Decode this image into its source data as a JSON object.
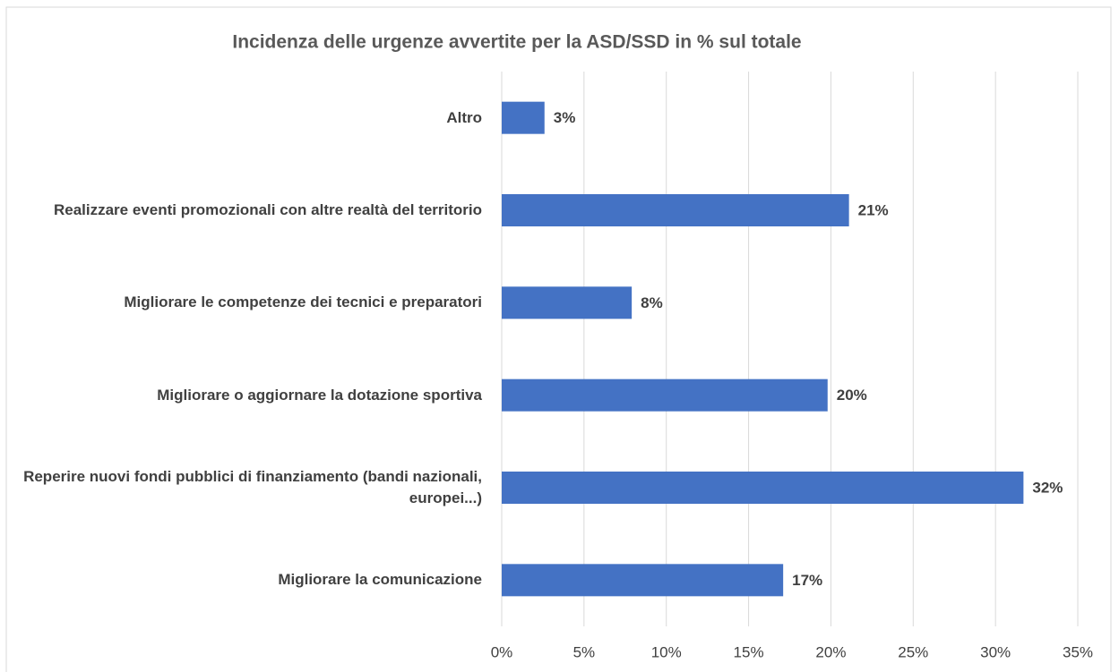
{
  "chart_data": {
    "type": "bar",
    "orientation": "horizontal",
    "title": "Incidenza delle urgenze avvertite per la ASD/SSD in % sul totale",
    "categories": [
      "Altro",
      "Realizzare eventi promozionali con altre realtà del territorio",
      "Migliorare le competenze dei tecnici e preparatori",
      "Migliorare o aggiornare la dotazione sportiva",
      "Reperire nuovi fondi pubblici di finanziamento (bandi nazionali, europei...)",
      "Migliorare la comunicazione"
    ],
    "values": [
      2.6,
      21.1,
      7.9,
      19.8,
      31.7,
      17.1
    ],
    "value_labels": [
      "3%",
      "21%",
      "8%",
      "20%",
      "32%",
      "17%"
    ],
    "color": "#4472c4",
    "xlim": [
      0,
      35
    ],
    "xticks": [
      {
        "value": 0,
        "label": "0%"
      },
      {
        "value": 5,
        "label": "5%"
      },
      {
        "value": 10,
        "label": "10%"
      },
      {
        "value": 15,
        "label": "15%"
      },
      {
        "value": 20,
        "label": "20%"
      },
      {
        "value": 25,
        "label": "25%"
      },
      {
        "value": 30,
        "label": "30%"
      },
      {
        "value": 35,
        "label": "35%"
      }
    ],
    "grid": true
  }
}
